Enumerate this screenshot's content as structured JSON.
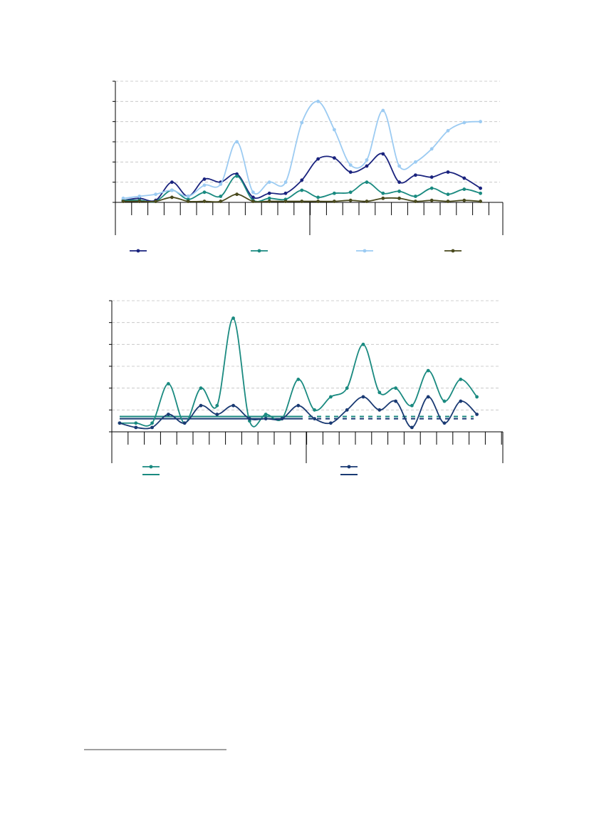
{
  "chart_data": [
    {
      "type": "line",
      "title": "",
      "xlabel": "",
      "ylabel": "",
      "ylim": [
        0,
        6
      ],
      "yticks": [
        0,
        1,
        2,
        3,
        4,
        5,
        6
      ],
      "grid": true,
      "smooth": true,
      "x_count": 23,
      "legend": "bottom",
      "series": [
        {
          "name": "",
          "color": "#1a237e",
          "values": [
            0.1,
            0.2,
            0.1,
            1.0,
            0.3,
            1.15,
            1.0,
            1.4,
            0.25,
            0.45,
            0.45,
            1.1,
            2.15,
            2.2,
            1.5,
            1.8,
            2.4,
            1.0,
            1.35,
            1.25,
            1.5,
            1.2,
            0.7
          ]
        },
        {
          "name": "",
          "color": "#1a8a80",
          "values": [
            0.1,
            0.1,
            0.05,
            0.6,
            0.15,
            0.5,
            0.3,
            1.3,
            0.1,
            0.2,
            0.15,
            0.6,
            0.25,
            0.45,
            0.5,
            1.0,
            0.45,
            0.55,
            0.3,
            0.7,
            0.4,
            0.65,
            0.45
          ]
        },
        {
          "name": "",
          "color": "#9ccbf2",
          "values": [
            0.2,
            0.3,
            0.4,
            0.6,
            0.3,
            0.85,
            0.9,
            3.0,
            0.5,
            1.0,
            1.0,
            3.95,
            5.0,
            3.6,
            1.85,
            2.1,
            4.55,
            1.8,
            2.0,
            2.65,
            3.55,
            3.95,
            4.0
          ]
        },
        {
          "name": "",
          "color": "#4a4a1e",
          "values": [
            0.05,
            0.05,
            0.05,
            0.25,
            0.05,
            0.05,
            0.05,
            0.4,
            0.05,
            0.05,
            0.05,
            0.05,
            0.05,
            0.05,
            0.1,
            0.05,
            0.2,
            0.2,
            0.05,
            0.1,
            0.05,
            0.1,
            0.05
          ]
        }
      ]
    },
    {
      "type": "line",
      "title": "",
      "xlabel": "",
      "ylabel": "",
      "ylim": [
        0,
        6
      ],
      "yticks": [
        0,
        1,
        2,
        3,
        4,
        5,
        6
      ],
      "grid": true,
      "smooth": true,
      "x_count": 23,
      "legend": "bottom",
      "series": [
        {
          "name": "",
          "color": "#1a8a80",
          "values": [
            0.4,
            0.4,
            0.4,
            2.2,
            0.4,
            2.0,
            1.2,
            5.2,
            0.5,
            0.8,
            0.6,
            2.4,
            1.0,
            1.6,
            2.0,
            4.0,
            1.8,
            2.0,
            1.2,
            2.8,
            1.4,
            2.4,
            1.6
          ]
        },
        {
          "name": "",
          "color": "#1a3a73",
          "values": [
            0.4,
            0.2,
            0.2,
            0.8,
            0.4,
            1.2,
            0.8,
            1.2,
            0.6,
            0.6,
            0.6,
            1.2,
            0.6,
            0.4,
            1.0,
            1.6,
            1.0,
            1.4,
            0.2,
            1.6,
            0.4,
            1.4,
            0.8
          ]
        }
      ],
      "reference_lines": [
        {
          "color": "#1a8a80",
          "value": 0.7
        },
        {
          "color": "#1a3a73",
          "value": 0.6
        }
      ]
    }
  ],
  "footnote_rule": true
}
